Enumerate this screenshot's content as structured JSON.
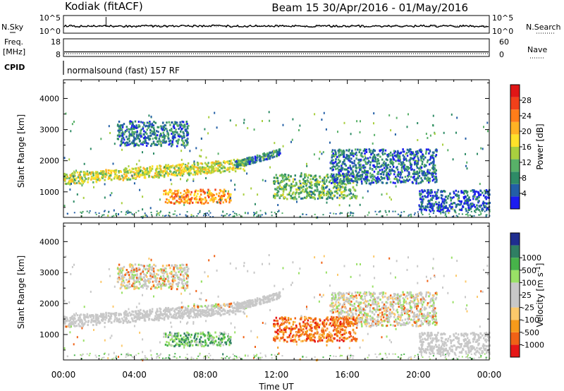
{
  "header": {
    "station": "Kodiak (fitACF)",
    "beam_date": "Beam 15  30/Apr/2016 - 01/May/2016"
  },
  "strips": {
    "nsky_label": "N.Sky",
    "nsky_ticks": [
      "10^5",
      "10^0"
    ],
    "nsearch_label": "N.Search",
    "nsearch_ticks": [
      "10^5",
      "10^0"
    ],
    "freq_label_1": "Freq.",
    "freq_label_2": "[MHz]",
    "freq_ticks": [
      "18",
      "8"
    ],
    "nave_label": "Nave",
    "nave_ticks": [
      "60",
      "0"
    ],
    "cpid_label": "CPID",
    "cpid_text": "normalsound (fast) 157 RF"
  },
  "colors": {
    "power": [
      "#1c1cf0",
      "#235fa6",
      "#2e8b66",
      "#58b068",
      "#a8cf3f",
      "#ffe22a",
      "#ffb224",
      "#ff7d19",
      "#f2401a",
      "#e01616"
    ],
    "velocity": [
      "#e61717",
      "#f06216",
      "#f59a1b",
      "#fcc96b",
      "#c8c8c8",
      "#c8c8c8",
      "#99e066",
      "#47b34a",
      "#2f7f63",
      "#1f3fa6"
    ],
    "velocity_bottom": "#e61717",
    "velocity_top": "#1f2e8f",
    "ground_scatter": "#c8c8c8"
  },
  "chart_data": [
    {
      "type": "heatmap",
      "quantity": "Power",
      "ylabel": "Slant Range [km]",
      "ylim": [
        180,
        4600
      ],
      "yticks": [
        1000,
        2000,
        3000,
        4000
      ],
      "xlim": [
        0,
        24
      ],
      "colorbar": {
        "label": "Power [dB]",
        "range": [
          0,
          32
        ],
        "ticks": [
          4,
          8,
          12,
          16,
          20,
          24,
          28
        ]
      },
      "regions": [
        {
          "x": [
            0,
            10.2
          ],
          "y": [
            1350,
            1900
          ],
          "level": 0.5
        },
        {
          "x": [
            5.6,
            9.4
          ],
          "y": [
            650,
            1100
          ],
          "level": 0.7
        },
        {
          "x": [
            9.6,
            12.2
          ],
          "y": [
            1900,
            2450
          ],
          "level": 0.25
        },
        {
          "x": [
            11.8,
            16.5
          ],
          "y": [
            800,
            1600
          ],
          "level": 0.35
        },
        {
          "x": [
            15,
            21
          ],
          "y": [
            1300,
            2400
          ],
          "level": 0.2
        },
        {
          "x": [
            20,
            24
          ],
          "y": [
            400,
            1100
          ],
          "level": 0.15
        },
        {
          "x": [
            3,
            7
          ],
          "y": [
            2500,
            3300
          ],
          "level": 0.2
        }
      ]
    },
    {
      "type": "heatmap",
      "quantity": "Velocity",
      "ylabel": "Slant Range [km]",
      "xlabel": "Time UT",
      "ylim": [
        180,
        4600
      ],
      "yticks": [
        1000,
        2000,
        3000,
        4000
      ],
      "xlim": [
        0,
        24
      ],
      "xticks": [
        "00:00",
        "04:00",
        "08:00",
        "12:00",
        "16:00",
        "20:00",
        "00:00"
      ],
      "colorbar": {
        "label": "Velocity [m s^-1]",
        "ticks": [
          "-1000",
          "-500",
          "-100",
          "-25",
          "25",
          "100",
          "500",
          "1000"
        ]
      }
    }
  ]
}
